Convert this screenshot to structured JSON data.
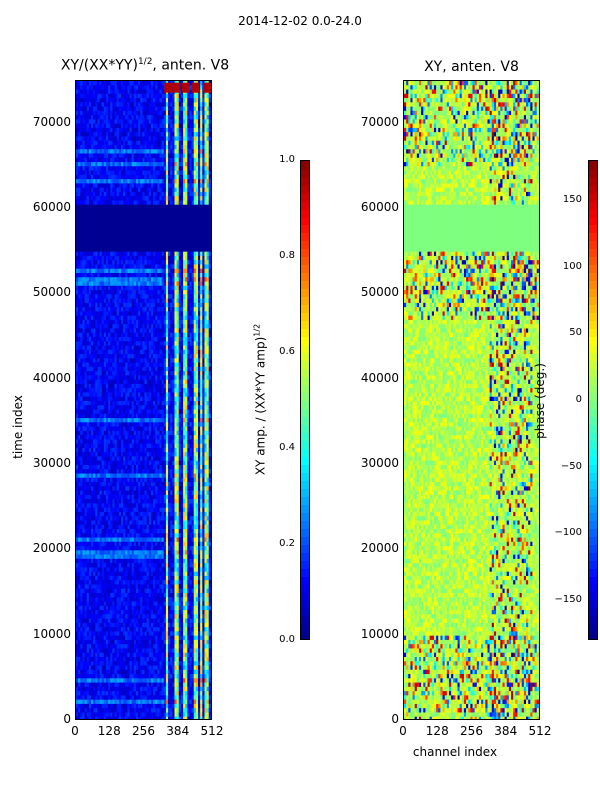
{
  "suptitle": "2014-12-02 0.0-24.0",
  "colormap": [
    "#00007f",
    "#0000ff",
    "#007fff",
    "#00ffff",
    "#7fff7f",
    "#ffff00",
    "#ff7f00",
    "#ff0000",
    "#7f0000"
  ],
  "chart_data": [
    {
      "type": "heatmap",
      "title": "XY/(XX*YY)^(1/2), anten. V8",
      "title_main": "XY/(XX*YY)",
      "title_sup": "1/2",
      "title_tail": ", anten. V8",
      "xlabel": "",
      "ylabel": "time index",
      "xlim": [
        0,
        512
      ],
      "ylim": [
        0,
        75000
      ],
      "xticks": [
        0,
        128,
        256,
        384,
        512
      ],
      "yticks": [
        0,
        10000,
        20000,
        30000,
        40000,
        50000,
        60000,
        70000
      ],
      "colorbar": {
        "label": "XY amp. / (XX*YY amp)^(1/2)",
        "label_main": "XY amp. / (XX*YY amp)",
        "label_sup": "1/2",
        "range": [
          0.0,
          1.0
        ],
        "ticks": [
          0.0,
          0.2,
          0.4,
          0.6,
          0.8,
          1.0
        ],
        "tick_labels": [
          "0.0",
          "0.2",
          "0.4",
          "0.6",
          "0.8",
          "1.0"
        ]
      },
      "background_value": 0.08,
      "strong_channel_range": [
        330,
        505
      ],
      "stripe_channels": [
        330,
        345,
        360,
        385,
        395,
        420,
        432,
        460,
        475,
        500
      ],
      "gap_time_range": [
        55000,
        60500
      ]
    },
    {
      "type": "heatmap",
      "title": "XY, anten. V8",
      "xlabel": "channel index",
      "ylabel": "",
      "xlim": [
        0,
        512
      ],
      "ylim": [
        0,
        75000
      ],
      "xticks": [
        0,
        128,
        256,
        384,
        512
      ],
      "yticks": [
        0,
        10000,
        20000,
        30000,
        40000,
        50000,
        60000,
        70000
      ],
      "colorbar": {
        "label": "phase (deg.)",
        "range": [
          -180,
          180
        ],
        "ticks": [
          -150,
          -100,
          -50,
          0,
          50,
          100,
          150
        ],
        "tick_labels": [
          "−150",
          "−100",
          "−50",
          "0",
          "50",
          "100",
          "150"
        ]
      },
      "background_value": 20,
      "gap_time_range": [
        55000,
        60500
      ],
      "gap_value": 0
    }
  ]
}
